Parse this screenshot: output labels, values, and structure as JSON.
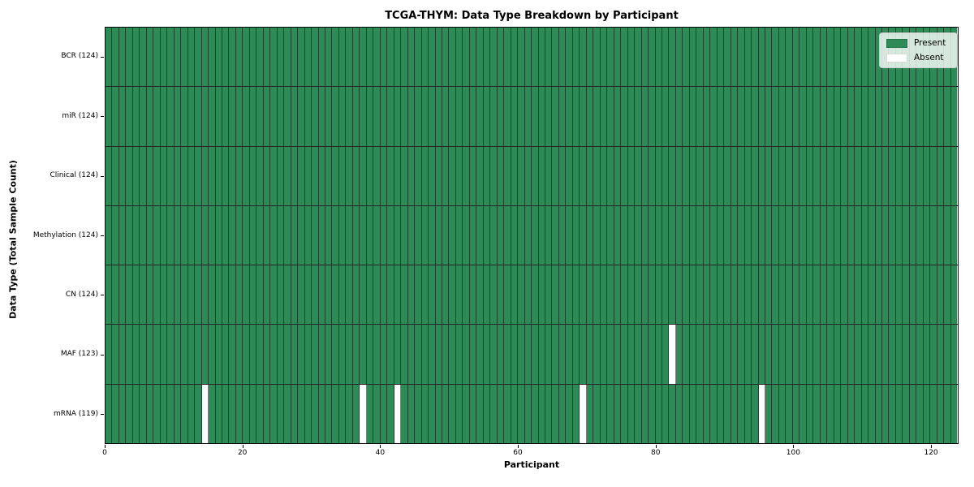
{
  "chart_data": {
    "type": "heatmap",
    "title": "TCGA-THYM: Data Type Breakdown by Participant",
    "xlabel": "Participant",
    "ylabel": "Data Type (Total Sample Count)",
    "x_ticks": [
      0,
      20,
      40,
      60,
      80,
      100,
      120
    ],
    "xlim": [
      0,
      124
    ],
    "n_participants": 124,
    "grid": "off",
    "legend": {
      "position": "upper right",
      "entries": [
        {
          "name": "present",
          "label": "Present",
          "color": "#2E8B57"
        },
        {
          "name": "absent",
          "label": "Absent",
          "color": "#FFFFFF"
        }
      ]
    },
    "rows": [
      {
        "label": "BCR (124)",
        "data_type": "BCR",
        "total": 124,
        "absent_participants": []
      },
      {
        "label": "miR (124)",
        "data_type": "miR",
        "total": 124,
        "absent_participants": []
      },
      {
        "label": "Clinical (124)",
        "data_type": "Clinical",
        "total": 124,
        "absent_participants": []
      },
      {
        "label": "Methylation (124)",
        "data_type": "Methylation",
        "total": 124,
        "absent_participants": []
      },
      {
        "label": "CN (124)",
        "data_type": "CN",
        "total": 124,
        "absent_participants": []
      },
      {
        "label": "MAF (123)",
        "data_type": "MAF",
        "total": 123,
        "absent_participants": [
          82
        ]
      },
      {
        "label": "mRNA (119)",
        "data_type": "mRNA",
        "total": 119,
        "absent_participants": [
          14,
          37,
          42,
          69,
          95
        ]
      }
    ],
    "colors": {
      "present": "#2E8B57",
      "absent": "#FFFFFF",
      "cell_edge": "rgba(0,0,0,0.5)",
      "row_divider": "rgba(0,0,0,0.85)",
      "plot_border": "#000000",
      "background": "#FFFFFF"
    }
  }
}
